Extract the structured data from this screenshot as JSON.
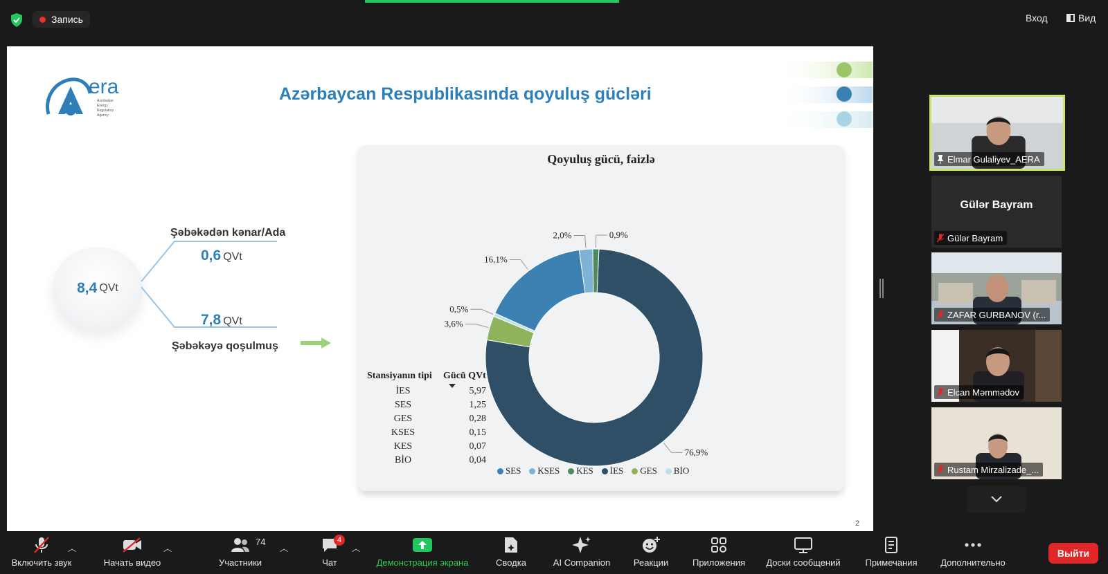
{
  "topbar": {
    "recording_label": "Запись",
    "login_label": "Вход",
    "view_label": "Вид",
    "accent_color": "#23c55e"
  },
  "slide": {
    "title": "Azərbaycan Respublikasında qoyuluş gücləri",
    "logo_text": "era",
    "logo_sub": [
      "Azerbaijan",
      "Energy",
      "Regulatory",
      "Agency"
    ],
    "total": {
      "value": "8,4",
      "unit": "QVt"
    },
    "offgrid": {
      "label": "Şəbəkədən kənar/Ada",
      "value": "0,6",
      "unit": "QVt"
    },
    "grid": {
      "label": "Şəbəkəyə qoşulmuş",
      "value": "7,8",
      "unit": "QVt"
    },
    "page_number": "2"
  },
  "chart_data": {
    "type": "pie",
    "title": "Qoyuluş gücü, faizlə",
    "donut": true,
    "slices": [
      {
        "name": "İES",
        "percent": 76.9,
        "label": "76,9%",
        "color": "#2e4f66"
      },
      {
        "name": "GES",
        "percent": 3.6,
        "label": "3,6%",
        "color": "#8fb35a"
      },
      {
        "name": "BİO",
        "percent": 0.5,
        "label": "0,5%",
        "color": "#bfe0ea"
      },
      {
        "name": "SES",
        "percent": 16.1,
        "label": "16,1%",
        "color": "#3d81b3"
      },
      {
        "name": "KSES",
        "percent": 2.0,
        "label": "2,0%",
        "color": "#7fb3d5"
      },
      {
        "name": "KES",
        "percent": 0.9,
        "label": "0,9%",
        "color": "#4e8a5e"
      }
    ],
    "legend": [
      "SES",
      "KSES",
      "KES",
      "İES",
      "GES",
      "BİO"
    ],
    "legend_placement": "bottom",
    "table": {
      "headers": [
        "Stansiyanın tipi",
        "Gücü QVt"
      ],
      "rows": [
        [
          "İES",
          "5,97"
        ],
        [
          "SES",
          "1,25"
        ],
        [
          "GES",
          "0,28"
        ],
        [
          "KSES",
          "0,15"
        ],
        [
          "KES",
          "0,07"
        ],
        [
          "BİO",
          "0,04"
        ]
      ]
    }
  },
  "participants": [
    {
      "name": "Elmar Gulaliyev_AERA",
      "active": true,
      "pinned": true
    },
    {
      "name": "Gülər Bayram",
      "display_name": "Gülər Bayram",
      "muted": true,
      "video": false
    },
    {
      "name": "ZAFAR GURBANOV (r...",
      "muted": true
    },
    {
      "name": "Elcan Məmmədov",
      "muted": true
    },
    {
      "name": "Rustam Mirzalizade_...",
      "muted": true
    }
  ],
  "toolbar": {
    "unmute": "Включить звук",
    "start_video": "Начать видео",
    "participants": "Участники",
    "participants_count": "74",
    "chat": "Чат",
    "chat_badge": "4",
    "share": "Демонстрация экрана",
    "summary": "Сводка",
    "ai": "AI Companion",
    "reactions": "Реакции",
    "apps": "Приложения",
    "whiteboards": "Доски сообщений",
    "notes": "Примечания",
    "more": "Дополнительно",
    "leave": "Выйти",
    "leave_color": "#e02828"
  }
}
